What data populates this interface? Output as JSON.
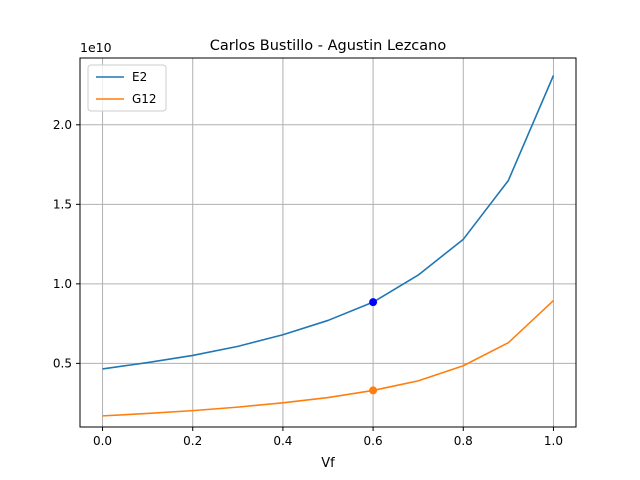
{
  "chart_data": {
    "type": "line",
    "title": "Carlos Bustillo - Agustin Lezcano",
    "xlabel": "Vf",
    "ylabel": "",
    "y_offset_label": "1e10",
    "xlim": [
      -0.05,
      1.05
    ],
    "ylim": [
      0.1,
      2.42
    ],
    "xticks": [
      0.0,
      0.2,
      0.4,
      0.6,
      0.8,
      1.0
    ],
    "xtick_labels": [
      "0.0",
      "0.2",
      "0.4",
      "0.6",
      "0.8",
      "1.0"
    ],
    "yticks": [
      0.5,
      1.0,
      1.5,
      2.0
    ],
    "ytick_labels": [
      "0.5",
      "1.0",
      "1.5",
      "2.0"
    ],
    "grid": true,
    "legend_position": "top-left",
    "x": [
      0.0,
      0.1,
      0.2,
      0.3,
      0.4,
      0.5,
      0.6,
      0.7,
      0.8,
      0.9,
      1.0
    ],
    "series": [
      {
        "name": "E2",
        "color": "#1f77b4",
        "values": [
          0.465,
          0.505,
          0.55,
          0.607,
          0.68,
          0.77,
          0.885,
          1.055,
          1.28,
          1.65,
          2.31
        ]
      },
      {
        "name": "G12",
        "color": "#ff7f0e",
        "values": [
          0.17,
          0.185,
          0.203,
          0.225,
          0.252,
          0.285,
          0.33,
          0.39,
          0.485,
          0.63,
          0.895
        ]
      }
    ],
    "highlight_points": [
      {
        "series": "E2",
        "x": 0.6,
        "y": 0.885,
        "color": "#0000ff"
      },
      {
        "series": "G12",
        "x": 0.6,
        "y": 0.33,
        "color": "#ff7f0e"
      }
    ]
  }
}
